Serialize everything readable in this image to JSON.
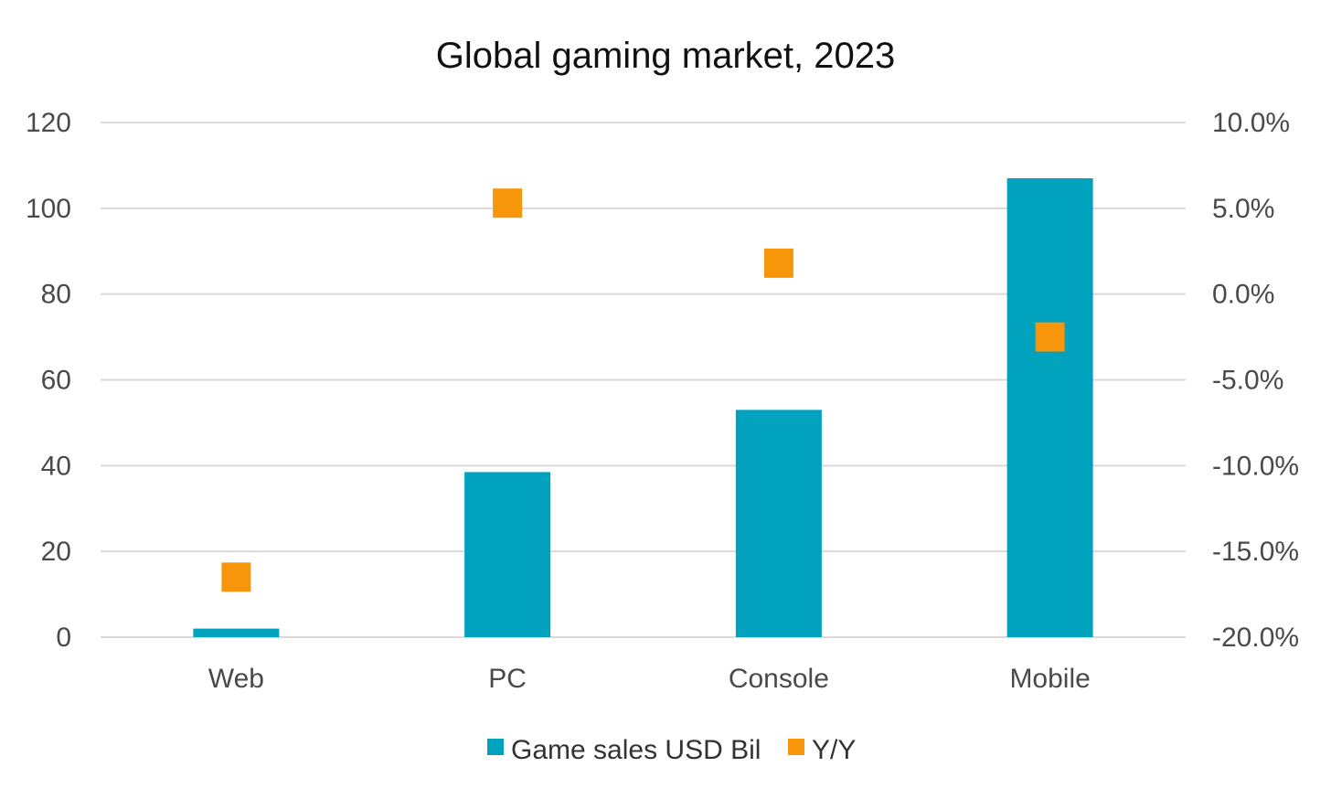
{
  "chart_data": {
    "type": "bar",
    "title": "Global gaming market, 2023",
    "categories": [
      "Web",
      "PC",
      "Console",
      "Mobile"
    ],
    "series": [
      {
        "name": "Game sales USD Bil",
        "kind": "bar",
        "axis": "left",
        "color": "#00A2BE",
        "values": [
          2,
          38.5,
          53,
          107
        ]
      },
      {
        "name": "Y/Y",
        "kind": "marker",
        "axis": "right",
        "color": "#F7950B",
        "values": [
          -16.5,
          5.3,
          1.8,
          -2.5
        ]
      }
    ],
    "y_left": {
      "ylim": [
        0,
        120
      ],
      "ticks": [
        0,
        20,
        40,
        60,
        80,
        100,
        120
      ],
      "tick_labels": [
        "0",
        "20",
        "40",
        "60",
        "80",
        "100",
        "120"
      ]
    },
    "y_right": {
      "ylim": [
        -20,
        10
      ],
      "ticks": [
        -20,
        -15,
        -10,
        -5,
        0,
        5,
        10
      ],
      "tick_labels": [
        "-20.0%",
        "-15.0%",
        "-10.0%",
        "-5.0%",
        "0.0%",
        "5.0%",
        "10.0%"
      ]
    },
    "grid": true,
    "legend": "bottom-center"
  }
}
